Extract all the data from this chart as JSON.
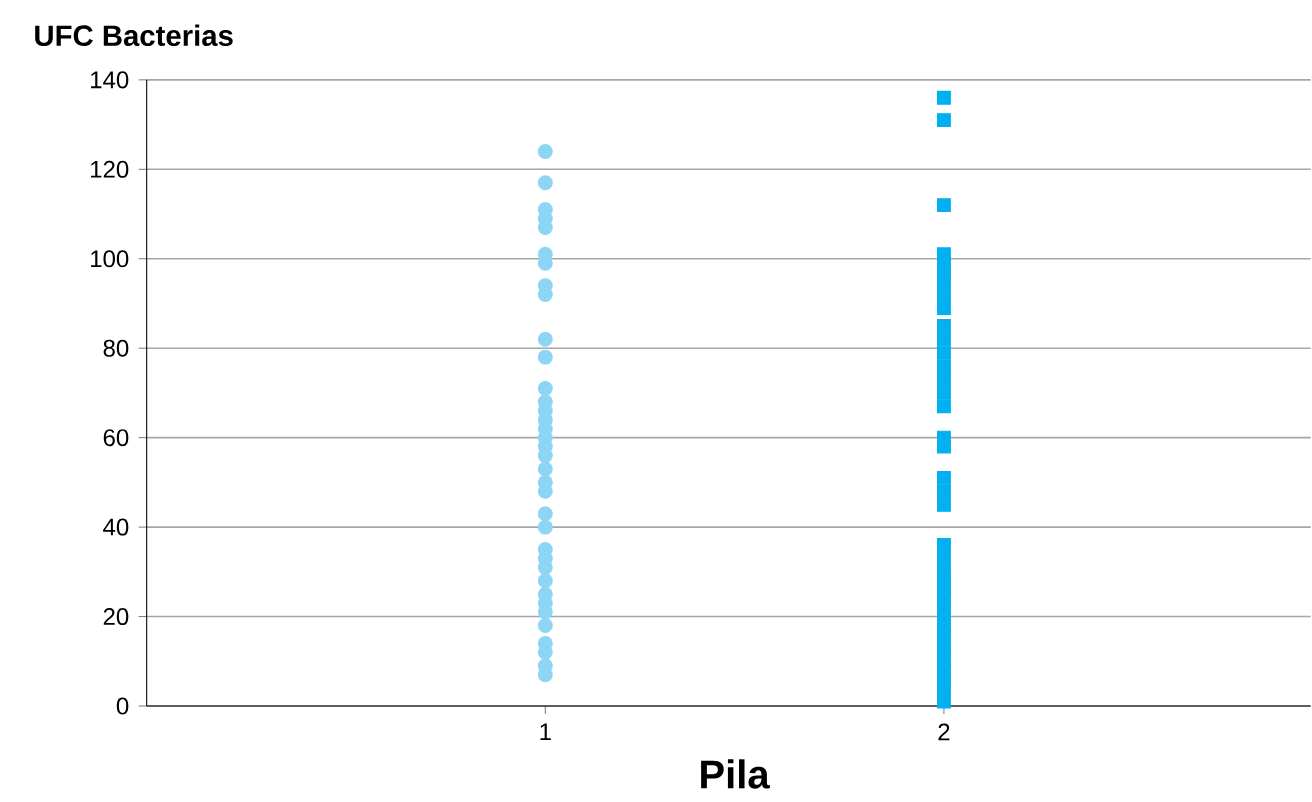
{
  "chart_data": {
    "type": "scatter",
    "xlabel": "Pila",
    "ylabel": "UFC Bacterias",
    "categories": [
      "1",
      "2"
    ],
    "ylim": [
      0,
      140
    ],
    "yticks": [
      0,
      20,
      40,
      60,
      80,
      100,
      120,
      140
    ],
    "grid": "y",
    "series": [
      {
        "color": "#8dd5f5",
        "marker": "circle",
        "x": [
          "1",
          "1",
          "1",
          "1",
          "1",
          "1",
          "1",
          "1",
          "1",
          "1",
          "1",
          "1",
          "1",
          "1",
          "1",
          "1",
          "1",
          "1",
          "1",
          "1",
          "1",
          "1",
          "1",
          "1",
          "1",
          "1",
          "1",
          "1",
          "1",
          "1",
          "1",
          "1",
          "1",
          "1",
          "1",
          "1",
          "1"
        ],
        "values": [
          124,
          117,
          111,
          109,
          107,
          101,
          99,
          94,
          92,
          82,
          78,
          71,
          68,
          66,
          64,
          62,
          60,
          58,
          56,
          53,
          50,
          48,
          43,
          null,
          40,
          35,
          33,
          31,
          28,
          25,
          23,
          21,
          18,
          14,
          12,
          9,
          7
        ]
      },
      {
        "color": "#00b0f0",
        "marker": "square",
        "x": [
          "2",
          "2",
          "2",
          "2",
          "2",
          "2",
          "2",
          "2",
          "2",
          "2",
          "2",
          "2",
          "2",
          "2",
          "2",
          "2",
          "2",
          "2",
          "2",
          "2",
          "2",
          "2",
          "2",
          "2",
          "2",
          "2",
          "2",
          "2",
          "2",
          "2",
          "2",
          "2",
          "2",
          "2",
          "2",
          "2",
          "2",
          "2",
          "2"
        ],
        "values": [
          136,
          131,
          112,
          101,
          99,
          97,
          95,
          92,
          89,
          85,
          82,
          79,
          76,
          73,
          70,
          67,
          60,
          58,
          51,
          48,
          45,
          36,
          33,
          30,
          28,
          26,
          24,
          22,
          20,
          18,
          16,
          14,
          12,
          10,
          8,
          6,
          4,
          null,
          1
        ]
      }
    ]
  }
}
